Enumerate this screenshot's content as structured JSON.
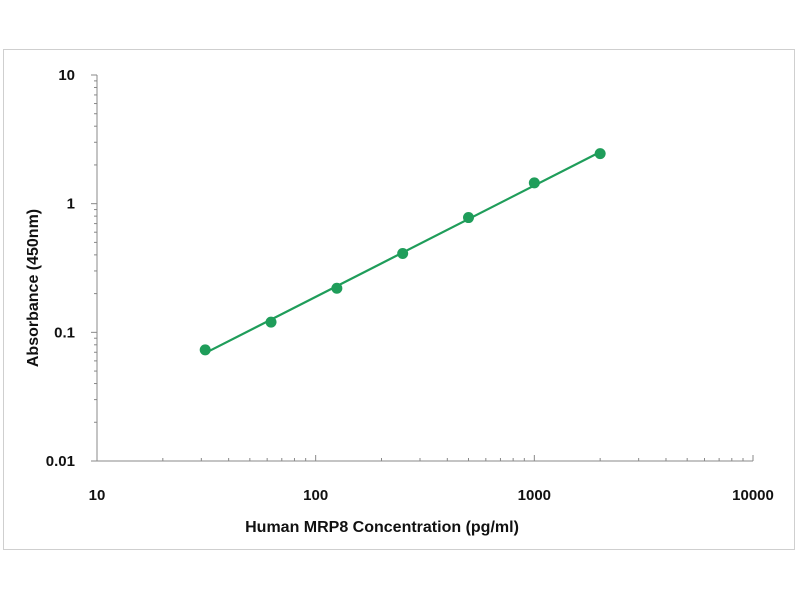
{
  "chart_data": {
    "type": "scatter",
    "title": "",
    "xlabel": "Human MRP8 Concentration (pg/ml)",
    "ylabel": "Absorbance (450nm)",
    "xscale": "log",
    "yscale": "log",
    "xlim": [
      10,
      10000
    ],
    "ylim": [
      0.01,
      10
    ],
    "x_ticks": [
      "10",
      "100",
      "1000",
      "10000"
    ],
    "y_ticks": [
      "10",
      "1",
      "0.1",
      "0.01"
    ],
    "grid": false,
    "legend": "none",
    "series": [
      {
        "x": [
          31.25,
          62.5,
          125,
          250,
          500,
          1000,
          2000
        ],
        "y": [
          0.073,
          0.12,
          0.22,
          0.41,
          0.78,
          1.45,
          2.45
        ],
        "fit_line": true
      }
    ],
    "colors": {
      "series": "#1f9d5a",
      "axis": "#888888"
    }
  }
}
